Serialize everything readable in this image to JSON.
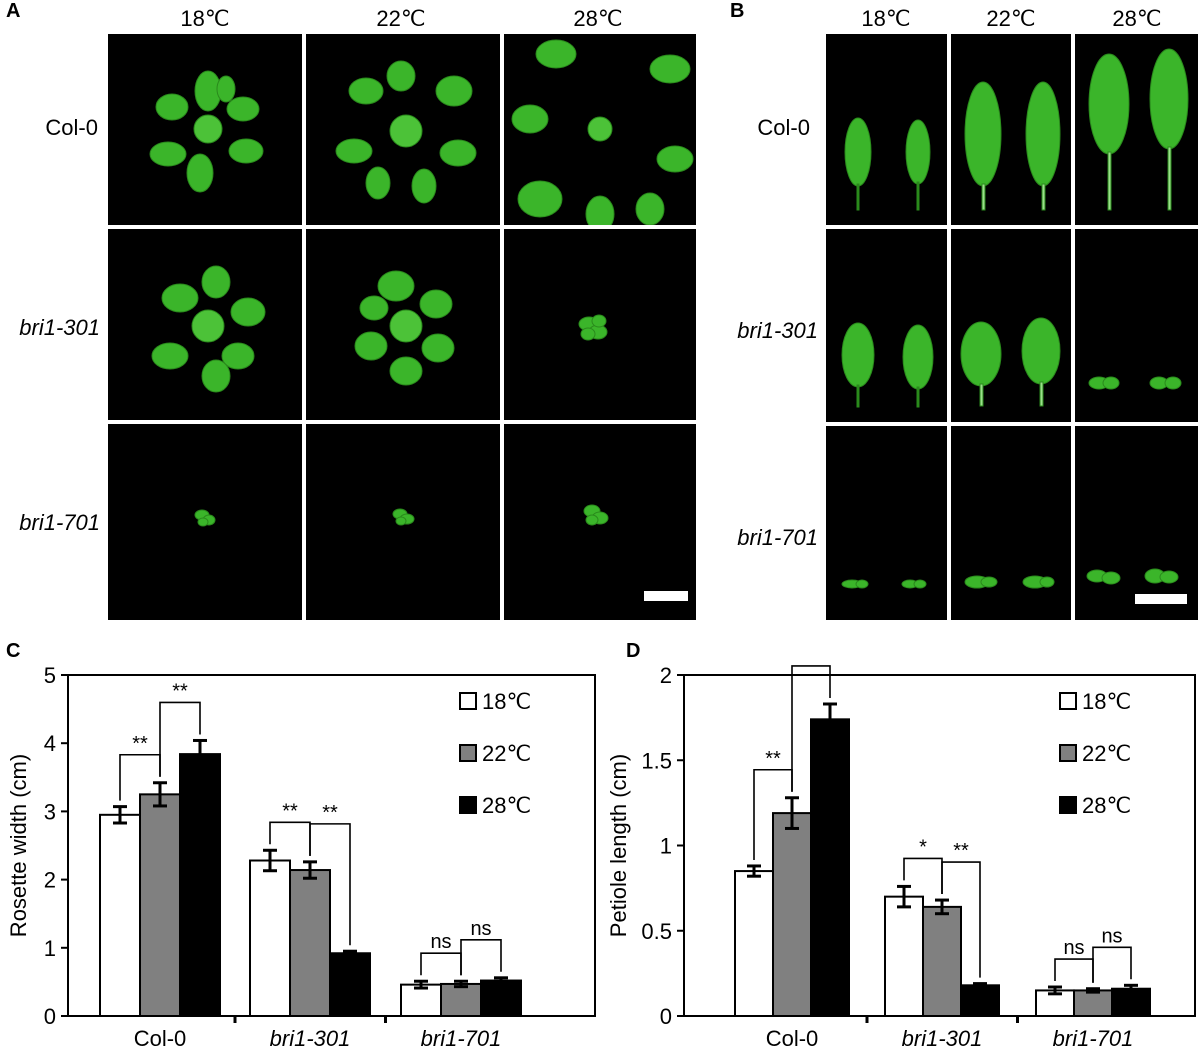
{
  "panels": {
    "A": {
      "letter": "A",
      "columns": [
        "18℃",
        "22℃",
        "28℃"
      ],
      "rows": [
        "Col-0",
        "bri1-301",
        "bri1-701"
      ]
    },
    "B": {
      "letter": "B",
      "columns": [
        "18℃",
        "22℃",
        "28℃"
      ],
      "rows": [
        "Col-0",
        "bri1-301",
        "bri1-701"
      ]
    },
    "C": {
      "letter": "C"
    },
    "D": {
      "letter": "D"
    }
  },
  "colors": {
    "plant": "#3bb52a",
    "plant_dark": "#2a8a1c",
    "bar_18": "#ffffff",
    "bar_22": "#808080",
    "bar_28": "#000000"
  },
  "chart_data": [
    {
      "panel": "C",
      "type": "bar",
      "categories": [
        "Col-0",
        "bri1-301",
        "bri1-701"
      ],
      "category_italic": [
        false,
        true,
        true
      ],
      "ylabel": "Rosette width (cm)",
      "ylim": [
        0,
        5
      ],
      "yticks": [
        0,
        1,
        2,
        3,
        4,
        5
      ],
      "legend_position": "top-right",
      "series": [
        {
          "name": "18℃",
          "values": [
            2.95,
            2.28,
            0.46
          ],
          "errors": [
            0.12,
            0.15,
            0.05
          ]
        },
        {
          "name": "22℃",
          "values": [
            3.25,
            2.14,
            0.47
          ],
          "errors": [
            0.17,
            0.12,
            0.04
          ]
        },
        {
          "name": "28℃",
          "values": [
            3.84,
            0.92,
            0.52
          ],
          "errors": [
            0.2,
            0.03,
            0.04
          ]
        }
      ],
      "annotations": [
        {
          "category": 0,
          "from": 0,
          "to": 1,
          "label": "**"
        },
        {
          "category": 0,
          "from": 1,
          "to": 2,
          "label": "**"
        },
        {
          "category": 1,
          "from": 0,
          "to": 1,
          "label": "**"
        },
        {
          "category": 1,
          "from": 1,
          "to": 2,
          "label": "**"
        },
        {
          "category": 2,
          "from": 0,
          "to": 1,
          "label": "ns"
        },
        {
          "category": 2,
          "from": 1,
          "to": 2,
          "label": "ns"
        }
      ]
    },
    {
      "panel": "D",
      "type": "bar",
      "categories": [
        "Col-0",
        "bri1-301",
        "bri1-701"
      ],
      "category_italic": [
        false,
        true,
        true
      ],
      "ylabel": "Petiole length (cm)",
      "ylim": [
        0,
        2
      ],
      "yticks": [
        0,
        0.5,
        1,
        1.5,
        2
      ],
      "legend_position": "top-right",
      "series": [
        {
          "name": "18℃",
          "values": [
            0.85,
            0.7,
            0.15
          ],
          "errors": [
            0.03,
            0.06,
            0.02
          ]
        },
        {
          "name": "22℃",
          "values": [
            1.19,
            0.64,
            0.15
          ],
          "errors": [
            0.09,
            0.04,
            0.01
          ]
        },
        {
          "name": "28℃",
          "values": [
            1.74,
            0.18,
            0.16
          ],
          "errors": [
            0.09,
            0.01,
            0.02
          ]
        }
      ],
      "annotations": [
        {
          "category": 0,
          "from": 0,
          "to": 1,
          "label": "**"
        },
        {
          "category": 0,
          "from": 1,
          "to": 2,
          "label": "**"
        },
        {
          "category": 1,
          "from": 0,
          "to": 1,
          "label": "*"
        },
        {
          "category": 1,
          "from": 1,
          "to": 2,
          "label": "**"
        },
        {
          "category": 2,
          "from": 0,
          "to": 1,
          "label": "ns"
        },
        {
          "category": 2,
          "from": 1,
          "to": 2,
          "label": "ns"
        }
      ]
    }
  ]
}
